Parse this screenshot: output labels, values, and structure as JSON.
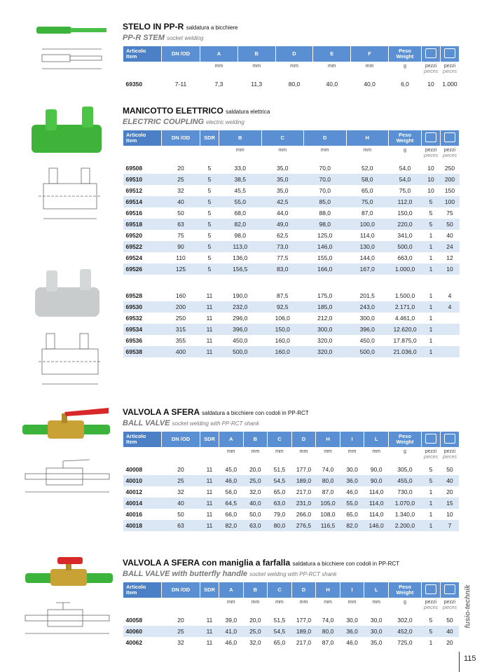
{
  "page_number": "115",
  "brand": "fusio-technik",
  "sections": [
    {
      "title": "STELO IN PP-R",
      "subtitle": "saldatura a bicchiere",
      "title_en": "PP-R STEM",
      "subtitle_en": "socket welding",
      "headers": [
        [
          "Articolo",
          "Item"
        ],
        "DN /OD",
        "A",
        "B",
        "D",
        "E",
        "F",
        [
          "Peso",
          "Weight"
        ]
      ],
      "units": [
        null,
        null,
        "mm",
        "mm",
        "mm",
        "mm",
        "mm",
        "g",
        [
          "pezzi",
          "pieces"
        ],
        [
          "pezzi",
          "pieces"
        ]
      ],
      "row_groups": [
        [
          [
            "69350",
            "7-11",
            "7,3",
            "11,3",
            "80,0",
            "40,0",
            "40,0",
            "6,0",
            "10",
            "1.000"
          ]
        ]
      ]
    },
    {
      "title": "MANICOTTO ELETTRICO",
      "subtitle": "saldatura elettrica",
      "title_en": "ELECTRIC COUPLING",
      "subtitle_en": "electric welding",
      "headers": [
        [
          "Articolo",
          "Item"
        ],
        "DN /OD",
        "SDR",
        "B",
        "C",
        "D",
        "H",
        [
          "Peso",
          "Weight"
        ]
      ],
      "units": [
        null,
        null,
        null,
        "mm",
        "mm",
        "mm",
        "mm",
        "g",
        [
          "pezzi",
          "pieces"
        ],
        [
          "pezzi",
          "pieces"
        ]
      ],
      "row_groups": [
        [
          [
            "69508",
            "20",
            "5",
            "33,0",
            "35,0",
            "70,0",
            "52,0",
            "54,0",
            "10",
            "250"
          ],
          [
            "69510",
            "25",
            "5",
            "38,5",
            "35,0",
            "70,0",
            "58,0",
            "54,0",
            "10",
            "200"
          ],
          [
            "69512",
            "32",
            "5",
            "45,5",
            "35,0",
            "70,0",
            "65,0",
            "75,0",
            "10",
            "150"
          ],
          [
            "69514",
            "40",
            "5",
            "55,0",
            "42,5",
            "85,0",
            "75,0",
            "112,0",
            "5",
            "100"
          ],
          [
            "69516",
            "50",
            "5",
            "68,0",
            "44,0",
            "88,0",
            "87,0",
            "150,0",
            "5",
            "75"
          ],
          [
            "69518",
            "63",
            "5",
            "82,0",
            "49,0",
            "98,0",
            "100,0",
            "220,0",
            "5",
            "50"
          ],
          [
            "69520",
            "75",
            "5",
            "98,0",
            "62,5",
            "125,0",
            "114,0",
            "341,0",
            "1",
            "40"
          ],
          [
            "69522",
            "90",
            "5",
            "113,0",
            "73,0",
            "146,0",
            "130,0",
            "500,0",
            "1",
            "24"
          ],
          [
            "69524",
            "110",
            "5",
            "136,0",
            "77,5",
            "155,0",
            "144,0",
            "663,0",
            "1",
            "12"
          ],
          [
            "69526",
            "125",
            "5",
            "156,5",
            "83,0",
            "166,0",
            "167,0",
            "1.000,0",
            "1",
            "10"
          ]
        ],
        [
          [
            "69528",
            "160",
            "11",
            "190,0",
            "87,5",
            "175,0",
            "201,5",
            "1.500,0",
            "1",
            "4"
          ],
          [
            "69530",
            "200",
            "11",
            "232,0",
            "92,5",
            "185,0",
            "243,0",
            "2.171,0",
            "1",
            "4"
          ],
          [
            "69532",
            "250",
            "11",
            "296,0",
            "106,0",
            "212,0",
            "300,0",
            "4.461,0",
            "1",
            null
          ],
          [
            "69534",
            "315",
            "11",
            "396,0",
            "150,0",
            "300,0",
            "396,0",
            "12.620,0",
            "1",
            null
          ],
          [
            "69536",
            "355",
            "11",
            "450,0",
            "160,0",
            "320,0",
            "450,0",
            "17.875,0",
            "1",
            null
          ],
          [
            "69538",
            "400",
            "11",
            "500,0",
            "160,0",
            "320,0",
            "500,0",
            "21.036,0",
            "1",
            null
          ]
        ]
      ]
    },
    {
      "title": "VALVOLA A SFERA",
      "subtitle": "saldatura a bicchiere con codoli in PP-RCT",
      "title_en": "BALL VALVE",
      "subtitle_en": "socket welding with PP-RCT shank",
      "headers": [
        [
          "Articolo",
          "Item"
        ],
        "DN /OD",
        "SDR",
        "A",
        "B",
        "C",
        "D",
        "H",
        "I",
        "L",
        [
          "Peso",
          "Weight"
        ]
      ],
      "units": [
        null,
        null,
        null,
        "mm",
        "mm",
        "mm",
        "mm",
        "mm",
        "mm",
        "mm",
        "g",
        [
          "pezzi",
          "pieces"
        ],
        [
          "pezzi",
          "pieces"
        ]
      ],
      "row_groups": [
        [
          [
            "40008",
            "20",
            "11",
            "45,0",
            "20,0",
            "51,5",
            "177,0",
            "74,0",
            "30,0",
            "90,0",
            "305,0",
            "5",
            "50"
          ],
          [
            "40010",
            "25",
            "11",
            "46,0",
            "25,0",
            "54,5",
            "189,0",
            "80,0",
            "36,0",
            "90,0",
            "455,0",
            "5",
            "40"
          ],
          [
            "40012",
            "32",
            "11",
            "56,0",
            "32,0",
            "65,0",
            "217,0",
            "87,0",
            "46,0",
            "114,0",
            "730,0",
            "1",
            "20"
          ],
          [
            "40014",
            "40",
            "11",
            "64,5",
            "40,0",
            "63,0",
            "231,0",
            "105,0",
            "55,0",
            "114,0",
            "1.070,0",
            "1",
            "15"
          ],
          [
            "40016",
            "50",
            "11",
            "66,0",
            "50,0",
            "79,0",
            "266,0",
            "108,0",
            "65,0",
            "114,0",
            "1.340,0",
            "1",
            "10"
          ],
          [
            "40018",
            "63",
            "11",
            "82,0",
            "63,0",
            "80,0",
            "276,5",
            "116,5",
            "82,0",
            "146,0",
            "2.200,0",
            "1",
            "7"
          ]
        ]
      ]
    },
    {
      "title": "VALVOLA A SFERA con maniglia a farfalla",
      "subtitle": "saldatura a bicchiere con codoli in PP-RCT",
      "title_en": "BALL VALVE with butterfly handle",
      "subtitle_en": "socket welding with PP-RCT shank",
      "headers": [
        [
          "Articolo",
          "Item"
        ],
        "DN /OD",
        "SDR",
        "A",
        "B",
        "C",
        "D",
        "H",
        "I",
        "L",
        [
          "Peso",
          "Weight"
        ]
      ],
      "units": [
        null,
        null,
        null,
        "mm",
        "mm",
        "mm",
        "mm",
        "mm",
        "mm",
        "mm",
        "g",
        [
          "pezzi",
          "pieces"
        ],
        [
          "pezzi",
          "pieces"
        ]
      ],
      "row_groups": [
        [
          [
            "40058",
            "20",
            "11",
            "39,0",
            "20,0",
            "51,5",
            "177,0",
            "74,0",
            "30,0",
            "30,0",
            "302,0",
            "5",
            "50"
          ],
          [
            "40060",
            "25",
            "11",
            "41,0",
            "25,0",
            "54,5",
            "189,0",
            "80,0",
            "36,0",
            "30,0",
            "452,0",
            "5",
            "40"
          ],
          [
            "40062",
            "32",
            "11",
            "46,0",
            "32,0",
            "65,0",
            "217,0",
            "87,0",
            "46,0",
            "35,0",
            "725,0",
            "1",
            "20"
          ]
        ]
      ]
    }
  ]
}
